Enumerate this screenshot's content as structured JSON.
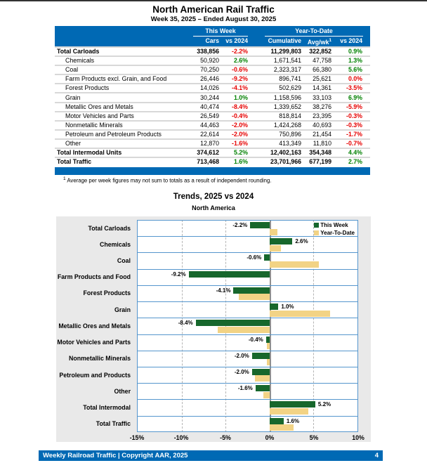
{
  "page": {
    "title": "North American Rail Traffic",
    "subtitle": "Week 35, 2025 – Ended August 30, 2025",
    "footnote_sup": "1",
    "footnote": " Average per week figures may not sum to totals as a result of independent rounding.",
    "footer": {
      "left": "Weekly Railroad Traffic | Copyright AAR, 2025",
      "page_number": "4"
    }
  },
  "table": {
    "group_headers": {
      "this_week": "This Week",
      "ytd": "Year-To-Date"
    },
    "columns": [
      "Cars",
      "vs 2024",
      "Cumulative",
      "Avg/wk",
      "vs 2024"
    ],
    "avgwk_sup": "1",
    "rows": [
      {
        "label": "Total Carloads",
        "bold": true,
        "indent": false,
        "cars": "338,856",
        "vs": "-2.2%",
        "vs_color": "red",
        "cumulative": "11,299,803",
        "avg": "322,852",
        "ytd": "0.9%",
        "ytd_color": "green"
      },
      {
        "label": "Chemicals",
        "bold": false,
        "indent": true,
        "cars": "50,920",
        "vs": "2.6%",
        "vs_color": "green",
        "cumulative": "1,671,541",
        "avg": "47,758",
        "ytd": "1.3%",
        "ytd_color": "green"
      },
      {
        "label": "Coal",
        "bold": false,
        "indent": true,
        "cars": "70,250",
        "vs": "-0.6%",
        "vs_color": "red",
        "cumulative": "2,323,317",
        "avg": "66,380",
        "ytd": "5.6%",
        "ytd_color": "green"
      },
      {
        "label": "Farm Products excl. Grain, and Food",
        "bold": false,
        "indent": true,
        "cars": "26,446",
        "vs": "-9.2%",
        "vs_color": "red",
        "cumulative": "896,741",
        "avg": "25,621",
        "ytd": "0.0%",
        "ytd_color": "red"
      },
      {
        "label": "Forest Products",
        "bold": false,
        "indent": true,
        "cars": "14,026",
        "vs": "-4.1%",
        "vs_color": "red",
        "cumulative": "502,629",
        "avg": "14,361",
        "ytd": "-3.5%",
        "ytd_color": "red"
      },
      {
        "label": "Grain",
        "bold": false,
        "indent": true,
        "cars": "30,244",
        "vs": "1.0%",
        "vs_color": "green",
        "cumulative": "1,158,596",
        "avg": "33,103",
        "ytd": "6.9%",
        "ytd_color": "green"
      },
      {
        "label": "Metallic Ores and Metals",
        "bold": false,
        "indent": true,
        "cars": "40,474",
        "vs": "-8.4%",
        "vs_color": "red",
        "cumulative": "1,339,652",
        "avg": "38,276",
        "ytd": "-5.9%",
        "ytd_color": "red"
      },
      {
        "label": "Motor Vehicles and Parts",
        "bold": false,
        "indent": true,
        "cars": "26,549",
        "vs": "-0.4%",
        "vs_color": "red",
        "cumulative": "818,814",
        "avg": "23,395",
        "ytd": "-0.3%",
        "ytd_color": "red"
      },
      {
        "label": "Nonmetallic Minerals",
        "bold": false,
        "indent": true,
        "cars": "44,463",
        "vs": "-2.0%",
        "vs_color": "red",
        "cumulative": "1,424,268",
        "avg": "40,693",
        "ytd": "-0.3%",
        "ytd_color": "red"
      },
      {
        "label": "Petroleum and Petroleum Products",
        "bold": false,
        "indent": true,
        "cars": "22,614",
        "vs": "-2.0%",
        "vs_color": "red",
        "cumulative": "750,896",
        "avg": "21,454",
        "ytd": "-1.7%",
        "ytd_color": "red"
      },
      {
        "label": "Other",
        "bold": false,
        "indent": true,
        "cars": "12,870",
        "vs": "-1.6%",
        "vs_color": "red",
        "cumulative": "413,349",
        "avg": "11,810",
        "ytd": "-0.7%",
        "ytd_color": "red"
      },
      {
        "label": "Total Intermodal Units",
        "bold": true,
        "indent": false,
        "cars": "374,612",
        "vs": "5.2%",
        "vs_color": "green",
        "cumulative": "12,402,163",
        "avg": "354,348",
        "ytd": "4.4%",
        "ytd_color": "green"
      },
      {
        "label": "Total Traffic",
        "bold": true,
        "indent": false,
        "cars": "713,468",
        "vs": "1.6%",
        "vs_color": "green",
        "cumulative": "23,701,966",
        "avg": "677,199",
        "ytd": "2.7%",
        "ytd_color": "green"
      }
    ]
  },
  "chart_data": {
    "type": "bar",
    "orientation": "horizontal",
    "title": "Trends, 2025 vs 2024",
    "subtitle": "North America",
    "categories": [
      "Total Carloads",
      "Chemicals",
      "Coal",
      "Farm Products and Food",
      "Forest Products",
      "Grain",
      "Metallic Ores and Metals",
      "Motor Vehicles and Parts",
      "Nonmetallic Minerals",
      "Petroleum and Products",
      "Other",
      "Total Intermodal",
      "Total Traffic"
    ],
    "series": [
      {
        "name": "This Week",
        "color": "#17672c",
        "values": [
          -2.2,
          2.6,
          -0.6,
          -9.2,
          -4.1,
          1.0,
          -8.4,
          -0.4,
          -2.0,
          -2.0,
          -1.6,
          5.2,
          1.6
        ],
        "labels": [
          "-2.2%",
          "2.6%",
          "-0.6%",
          "-9.2%",
          "-4.1%",
          "1.0%",
          "-8.4%",
          "-0.4%",
          "-2.0%",
          "-2.0%",
          "-1.6%",
          "5.2%",
          "1.6%"
        ]
      },
      {
        "name": "Year-To-Date",
        "color": "#f2d385",
        "values": [
          0.9,
          1.3,
          5.6,
          0.0,
          -3.5,
          6.9,
          -5.9,
          -0.3,
          -0.3,
          -1.7,
          -0.7,
          4.4,
          2.7
        ]
      }
    ],
    "xlim": [
      -15,
      10
    ],
    "ticks": [
      {
        "value": -15,
        "label": "-15%"
      },
      {
        "value": -10,
        "label": "-10%"
      },
      {
        "value": -5,
        "label": "-5%"
      },
      {
        "value": 0,
        "label": "0%"
      },
      {
        "value": 5,
        "label": "5%"
      },
      {
        "value": 10,
        "label": "10%"
      }
    ],
    "legend_position": "top-right",
    "grid": "vertical-dashed"
  },
  "colors": {
    "header_blue": "#0069b4",
    "row_line_blue": "#5596cd",
    "bar_green": "#17672c",
    "bar_tan": "#f2d385",
    "negative_red": "#e60000",
    "positive_green": "#008000"
  }
}
